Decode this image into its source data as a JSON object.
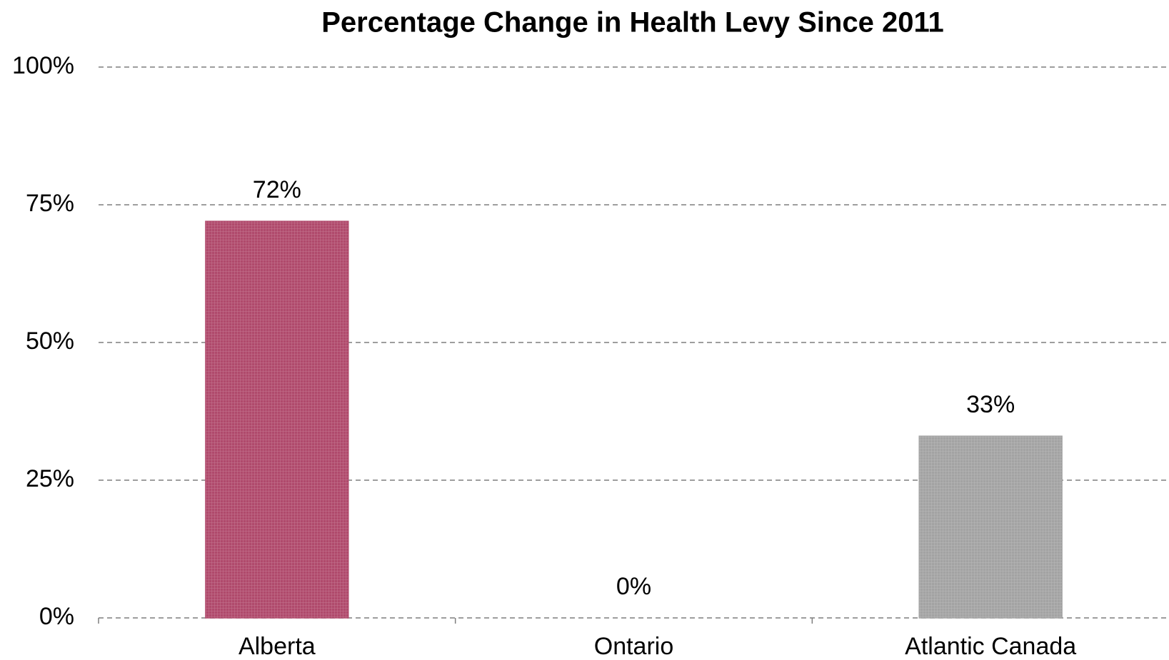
{
  "chart_data": {
    "type": "bar",
    "title": "Percentage Change in Health Levy Since 2011",
    "categories": [
      "Alberta",
      "Ontario",
      "Atlantic Canada"
    ],
    "values": [
      72,
      0,
      33
    ],
    "value_labels": [
      "72%",
      "0%",
      "33%"
    ],
    "colors": [
      "#b04a6c",
      "#b04a6c",
      "#a3a3a3"
    ],
    "ylim": [
      0,
      100
    ],
    "yticks": [
      {
        "value": 0,
        "label": "0%"
      },
      {
        "value": 25,
        "label": "25%"
      },
      {
        "value": 50,
        "label": "50%"
      },
      {
        "value": 75,
        "label": "75%"
      },
      {
        "value": 100,
        "label": "100%"
      }
    ],
    "grid": true
  }
}
